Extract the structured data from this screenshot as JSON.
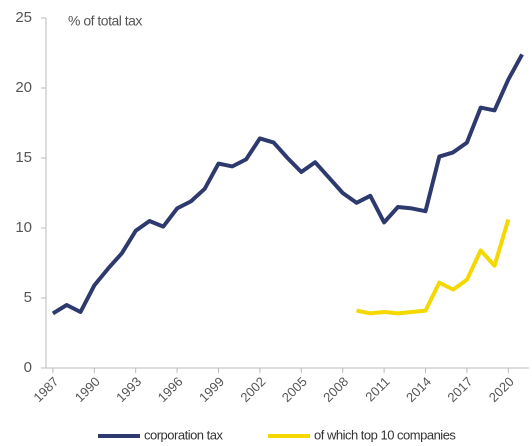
{
  "chart_data": {
    "type": "line",
    "y_label": "% of total tax",
    "x": [
      1987,
      1988,
      1989,
      1990,
      1991,
      1992,
      1993,
      1994,
      1995,
      1996,
      1997,
      1998,
      1999,
      2000,
      2001,
      2002,
      2003,
      2004,
      2005,
      2006,
      2007,
      2008,
      2009,
      2010,
      2011,
      2012,
      2013,
      2014,
      2015,
      2016,
      2017,
      2018,
      2019,
      2020,
      2021
    ],
    "series": [
      {
        "name": "corporation tax",
        "color": "#2e3a6e",
        "values": [
          3.9,
          4.5,
          4.0,
          5.9,
          7.1,
          8.2,
          9.8,
          10.5,
          10.1,
          11.4,
          11.9,
          12.8,
          14.6,
          14.4,
          14.9,
          16.4,
          16.1,
          15.0,
          14.0,
          14.7,
          13.6,
          12.5,
          11.8,
          12.3,
          10.4,
          11.5,
          11.4,
          11.2,
          15.1,
          15.4,
          16.1,
          18.6,
          18.4,
          20.6,
          22.4
        ]
      },
      {
        "name": "of which top 10 companies",
        "color": "#f5d800",
        "values": [
          null,
          null,
          null,
          null,
          null,
          null,
          null,
          null,
          null,
          null,
          null,
          null,
          null,
          null,
          null,
          null,
          null,
          null,
          null,
          null,
          null,
          null,
          4.1,
          3.9,
          4.0,
          3.9,
          4.0,
          4.1,
          6.1,
          5.6,
          6.3,
          8.4,
          7.3,
          10.6,
          null
        ]
      }
    ],
    "xlim": [
      1986.5,
      2021.5
    ],
    "xticks": [
      1987,
      1990,
      1993,
      1996,
      1999,
      2002,
      2005,
      2008,
      2011,
      2014,
      2017,
      2020
    ],
    "ylim": [
      0,
      25
    ],
    "yticks": [
      0,
      5,
      10,
      15,
      20,
      25
    ],
    "grid": false,
    "legend": "bottom"
  }
}
